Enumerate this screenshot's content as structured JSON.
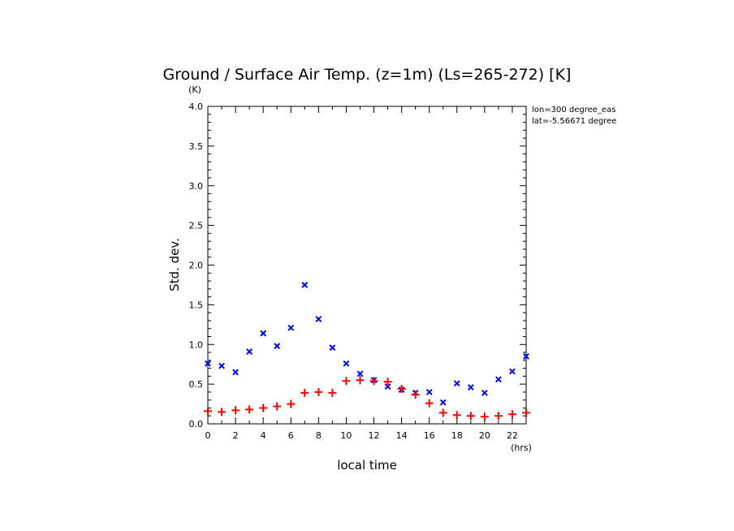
{
  "chart_data": {
    "type": "scatter",
    "title": "Ground / Surface Air Temp. (z=1m) (Ls=265-272) [K]",
    "xlabel": "local time",
    "ylabel": "Std. dev.",
    "x_unit": "(hrs)",
    "y_unit": "(K)",
    "annotations": [
      "lon=300 degree_eas",
      "lat=-5.56671 degree"
    ],
    "xlim": [
      0,
      23
    ],
    "ylim": [
      0,
      4.0
    ],
    "x_ticks": [
      0,
      2,
      4,
      6,
      8,
      10,
      12,
      14,
      16,
      18,
      20,
      22
    ],
    "y_ticks": [
      "0.0",
      "0.5",
      "1.0",
      "1.5",
      "2.0",
      "2.5",
      "3.0",
      "3.5",
      "4.0"
    ],
    "grid": false,
    "series": [
      {
        "marker": "x",
        "color": "#0000ff",
        "x": [
          0,
          1,
          2,
          3,
          4,
          5,
          6,
          7,
          8,
          9,
          10,
          11,
          12,
          13,
          14,
          15,
          16,
          17,
          18,
          19,
          20,
          21,
          22,
          23
        ],
        "values": [
          0.76,
          0.73,
          0.65,
          0.91,
          1.14,
          0.98,
          1.21,
          1.75,
          1.32,
          0.96,
          0.76,
          0.63,
          0.55,
          0.47,
          0.43,
          0.39,
          0.4,
          0.27,
          0.51,
          0.46,
          0.39,
          0.56,
          0.66,
          0.85
        ]
      },
      {
        "marker": "+",
        "color": "#ff0000",
        "x": [
          0,
          1,
          2,
          3,
          4,
          5,
          6,
          7,
          8,
          9,
          10,
          11,
          12,
          13,
          14,
          15,
          16,
          17,
          18,
          19,
          20,
          21,
          22,
          23
        ],
        "values": [
          0.16,
          0.15,
          0.17,
          0.18,
          0.2,
          0.22,
          0.25,
          0.39,
          0.4,
          0.39,
          0.54,
          0.55,
          0.54,
          0.53,
          0.44,
          0.37,
          0.26,
          0.14,
          0.11,
          0.1,
          0.09,
          0.1,
          0.12,
          0.14
        ]
      }
    ]
  }
}
